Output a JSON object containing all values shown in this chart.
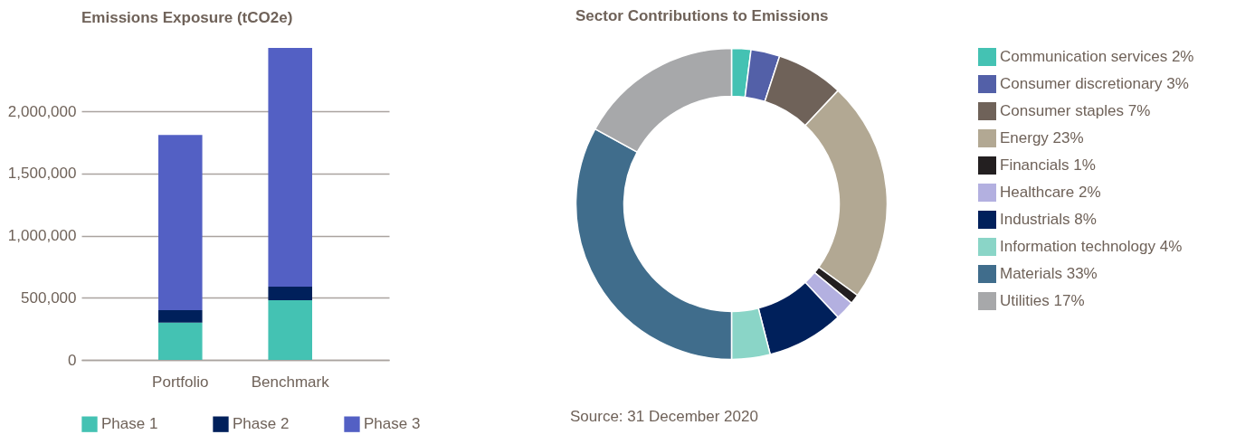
{
  "chart_data": [
    {
      "type": "bar",
      "title": "Emissions Exposure (tCO2e)",
      "categories": [
        "Portfolio",
        "Benchmark"
      ],
      "stacked": true,
      "series": [
        {
          "name": "Phase 1",
          "color": "#44c2b3",
          "values": [
            300000,
            480000
          ]
        },
        {
          "name": "Phase 2",
          "color": "#00205b",
          "values": [
            100000,
            110000
          ]
        },
        {
          "name": "Phase 3",
          "color": "#5360c4",
          "values": [
            1410000,
            1920000
          ]
        }
      ],
      "ylim": [
        0,
        2510000
      ],
      "yticks": [
        0,
        {
          "value": 500000,
          "label": "500,000"
        },
        {
          "value": 1000000,
          "label": "1,000,000"
        },
        {
          "value": 1500000,
          "label": "1,500,000"
        },
        {
          "value": 2000000,
          "label": "2,000,000"
        }
      ],
      "grid": "y",
      "legend": "bottom"
    },
    {
      "type": "donut",
      "title": "Sector Contributions to Emissions",
      "categories": [
        "Communication services 2%",
        "Consumer discretionary 3%",
        "Consumer staples 7%",
        "Energy 23%",
        "Financials 1%",
        "Healthcare 2%",
        "Industrials 8%",
        "Information technology 4%",
        "Materials 33%",
        "Utilities 17%"
      ],
      "values": [
        2,
        3,
        7,
        23,
        1,
        2,
        8,
        4,
        33,
        17
      ],
      "colors": [
        "#44c2b3",
        "#5360a8",
        "#6f6259",
        "#b2a893",
        "#231f20",
        "#b3b0e0",
        "#00205b",
        "#8ad5c7",
        "#406d8c",
        "#a7a8aa"
      ],
      "legend": "right",
      "annotations": [
        "Source: 31 December 2020"
      ]
    }
  ]
}
